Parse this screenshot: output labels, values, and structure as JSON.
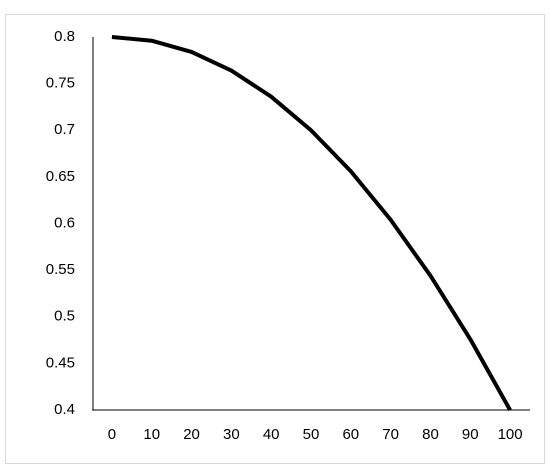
{
  "chart_data": {
    "type": "line",
    "categories": [
      "0",
      "10",
      "20",
      "30",
      "40",
      "50",
      "60",
      "70",
      "80",
      "90",
      "100"
    ],
    "series": [
      {
        "color": "#000000",
        "values": [
          0.8,
          0.796,
          0.784,
          0.764,
          0.736,
          0.7,
          0.656,
          0.604,
          0.544,
          0.476,
          0.4
        ]
      }
    ],
    "ylim": [
      0.4,
      0.8
    ],
    "yticks": [
      0.4,
      0.45,
      0.5,
      0.55,
      0.6,
      0.65,
      0.7,
      0.75,
      0.8
    ],
    "grid": false
  }
}
